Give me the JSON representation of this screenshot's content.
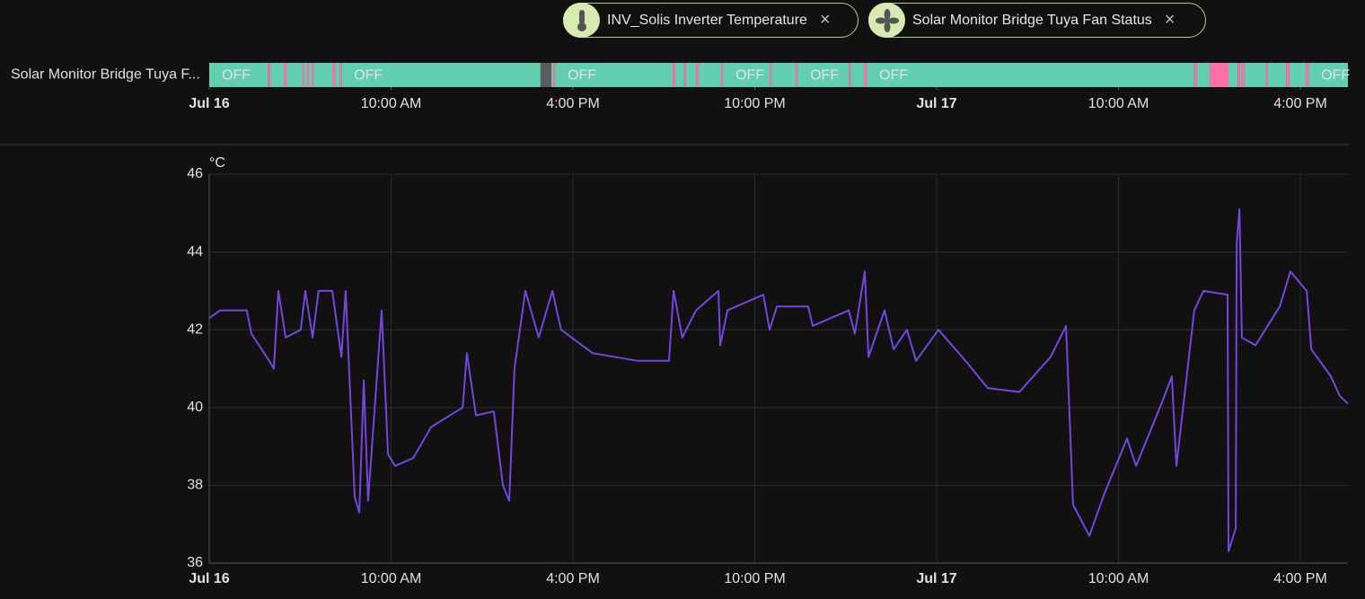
{
  "chips": [
    {
      "label": "INV_Solis Inverter Temperature"
    },
    {
      "label": "Solar Monitor Bridge Tuya Fan Status"
    }
  ],
  "chart_data": [
    {
      "type": "timeline",
      "row_label": "Solar Monitor Bridge Tuya F...",
      "xlim": [
        0,
        37.57
      ],
      "xticks": [
        {
          "value": 0,
          "label": "Jul 16"
        },
        {
          "value": 6,
          "label": "10:00 AM"
        },
        {
          "value": 12,
          "label": "4:00 PM"
        },
        {
          "value": 18,
          "label": "10:00 PM"
        },
        {
          "value": 24,
          "label": "Jul 17"
        },
        {
          "value": 30,
          "label": "10:00 AM"
        },
        {
          "value": 36,
          "label": "4:00 PM"
        }
      ],
      "state_colors": {
        "OFF": "#63cfb1",
        "ON": "#ff70a6",
        "unavailable": "#5c5c5c"
      },
      "segments": [
        {
          "start": 0,
          "state": "OFF"
        },
        {
          "start": 1.93,
          "state": "ON"
        },
        {
          "start": 2.01,
          "state": "OFF"
        },
        {
          "start": 2.46,
          "state": "ON"
        },
        {
          "start": 2.55,
          "state": "OFF"
        },
        {
          "start": 3.08,
          "state": "ON"
        },
        {
          "start": 3.14,
          "state": "OFF"
        },
        {
          "start": 3.23,
          "state": "ON"
        },
        {
          "start": 3.29,
          "state": "OFF"
        },
        {
          "start": 3.38,
          "state": "ON"
        },
        {
          "start": 3.44,
          "state": "OFF"
        },
        {
          "start": 4.06,
          "state": "ON"
        },
        {
          "start": 4.15,
          "state": "OFF"
        },
        {
          "start": 4.3,
          "state": "ON"
        },
        {
          "start": 4.36,
          "state": "OFF"
        },
        {
          "start": 10.93,
          "state": "unavailable"
        },
        {
          "start": 11.29,
          "state": "OFF"
        },
        {
          "start": 11.35,
          "state": "ON"
        },
        {
          "start": 11.41,
          "state": "OFF"
        },
        {
          "start": 15.29,
          "state": "ON"
        },
        {
          "start": 15.38,
          "state": "OFF"
        },
        {
          "start": 15.67,
          "state": "ON"
        },
        {
          "start": 15.73,
          "state": "OFF"
        },
        {
          "start": 16.06,
          "state": "ON"
        },
        {
          "start": 16.15,
          "state": "OFF"
        },
        {
          "start": 16.89,
          "state": "ON"
        },
        {
          "start": 16.95,
          "state": "OFF"
        },
        {
          "start": 18.49,
          "state": "ON"
        },
        {
          "start": 18.55,
          "state": "OFF"
        },
        {
          "start": 19.35,
          "state": "ON"
        },
        {
          "start": 19.41,
          "state": "OFF"
        },
        {
          "start": 21.1,
          "state": "ON"
        },
        {
          "start": 21.16,
          "state": "OFF"
        },
        {
          "start": 21.6,
          "state": "ON"
        },
        {
          "start": 21.69,
          "state": "OFF"
        },
        {
          "start": 32.5,
          "state": "ON"
        },
        {
          "start": 32.59,
          "state": "OFF"
        },
        {
          "start": 33.01,
          "state": "ON"
        },
        {
          "start": 33.63,
          "state": "OFF"
        },
        {
          "start": 33.93,
          "state": "ON"
        },
        {
          "start": 34.01,
          "state": "OFF"
        },
        {
          "start": 34.07,
          "state": "ON"
        },
        {
          "start": 34.16,
          "state": "OFF"
        },
        {
          "start": 34.87,
          "state": "ON"
        },
        {
          "start": 34.93,
          "state": "OFF"
        },
        {
          "start": 35.53,
          "state": "ON"
        },
        {
          "start": 35.64,
          "state": "OFF"
        },
        {
          "start": 36.18,
          "state": "ON"
        },
        {
          "start": 36.27,
          "state": "OFF"
        }
      ]
    },
    {
      "type": "line",
      "y_unit_label": "°C",
      "xlim": [
        0,
        37.57
      ],
      "ylim": [
        36,
        46
      ],
      "yticks": [
        36,
        38,
        40,
        42,
        44,
        46
      ],
      "grid": true,
      "xticks": [
        {
          "value": 0,
          "label": "Jul 16"
        },
        {
          "value": 6,
          "label": "10:00 AM"
        },
        {
          "value": 12,
          "label": "4:00 PM"
        },
        {
          "value": 18,
          "label": "10:00 PM"
        },
        {
          "value": 24,
          "label": "Jul 17"
        },
        {
          "value": 30,
          "label": "10:00 AM"
        },
        {
          "value": 36,
          "label": "4:00 PM"
        }
      ],
      "x": [
        0,
        0.36,
        1.24,
        1.39,
        1.98,
        2.13,
        2.28,
        2.52,
        3.02,
        3.17,
        3.41,
        3.61,
        4.06,
        4.36,
        4.5,
        4.8,
        4.95,
        5.1,
        5.24,
        5.69,
        5.9,
        6.13,
        6.73,
        7.32,
        8.36,
        8.5,
        8.8,
        9.39,
        9.69,
        9.9,
        10.07,
        10.43,
        10.87,
        11.32,
        11.61,
        12.65,
        14.13,
        15.17,
        15.32,
        15.61,
        16.06,
        16.8,
        16.86,
        17.1,
        18.28,
        18.49,
        18.73,
        19.76,
        19.91,
        21.1,
        21.3,
        21.63,
        21.75,
        22.28,
        22.58,
        23.02,
        23.32,
        24.06,
        24.95,
        25.69,
        26.73,
        27.76,
        28.27,
        28.5,
        29.04,
        29.54,
        30.28,
        30.58,
        31.47,
        31.76,
        31.91,
        32.5,
        32.8,
        33.6,
        33.63,
        33.87,
        33.9,
        33.99,
        34.07,
        34.52,
        35.32,
        35.67,
        36.21,
        36.36,
        37.01,
        37.3,
        37.57
      ],
      "series": [
        {
          "name": "INV_Solis Inverter Temperature",
          "color": "#7446e0",
          "values": [
            42.3,
            42.5,
            42.5,
            41.9,
            41.2,
            41,
            43,
            41.8,
            42,
            43,
            41.8,
            43,
            43,
            41.3,
            43,
            37.7,
            37.3,
            40.7,
            37.6,
            42.5,
            38.8,
            38.5,
            38.7,
            39.5,
            40,
            41.4,
            39.8,
            39.9,
            38,
            37.6,
            41,
            43,
            41.8,
            43,
            42,
            41.4,
            41.2,
            41.2,
            43,
            41.8,
            42.5,
            43,
            41.6,
            42.5,
            42.9,
            42,
            42.6,
            42.6,
            42.1,
            42.5,
            41.9,
            43.5,
            41.3,
            42.5,
            41.5,
            42,
            41.2,
            42,
            41.2,
            40.5,
            40.4,
            41.3,
            42.1,
            37.5,
            36.7,
            37.8,
            39.2,
            38.5,
            40.2,
            40.8,
            38.5,
            42.5,
            43,
            42.9,
            36.3,
            36.9,
            44.2,
            45.1,
            41.8,
            41.6,
            42.6,
            43.5,
            43,
            41.5,
            40.8,
            40.3,
            40.1
          ]
        }
      ]
    }
  ]
}
